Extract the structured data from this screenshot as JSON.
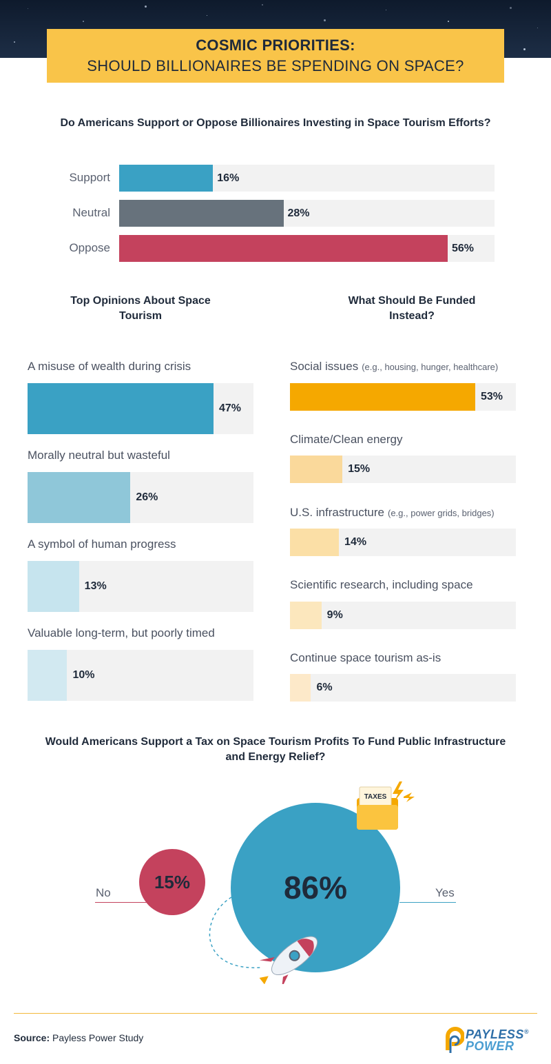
{
  "header": {
    "title_line1": "COSMIC PRIORITIES:",
    "title_line2": "SHOULD BILLIONAIRES BE SPENDING ON SPACE?"
  },
  "colors": {
    "support": "#3aa1c4",
    "neutral": "#67727c",
    "oppose": "#c4425d",
    "opinions": [
      "#3aa1c4",
      "#8fc7d9",
      "#c6e4ee",
      "#d2e9f1"
    ],
    "funded": [
      "#f5a800",
      "#fad99b",
      "#fbdfa6",
      "#fce7bd",
      "#fde9c9"
    ],
    "yes": "#3aa1c4",
    "no": "#c4425d",
    "track": "#f2f2f2"
  },
  "chart_data": [
    {
      "type": "bar",
      "title": "Do Americans Support or Oppose Billionaires Investing in Space Tourism Efforts?",
      "categories": [
        "Support",
        "Neutral",
        "Oppose"
      ],
      "values": [
        16,
        28,
        56
      ],
      "value_labels": [
        "16%",
        "28%",
        "56%"
      ],
      "unit": "%",
      "ylim": [
        0,
        100
      ]
    },
    {
      "type": "bar",
      "title": "Top Opinions About Space Tourism",
      "categories": [
        "A misuse of wealth during crisis",
        "Morally neutral but wasteful",
        "A symbol of human progress",
        "Valuable long-term, but poorly timed"
      ],
      "values": [
        47,
        26,
        13,
        10
      ],
      "value_labels": [
        "47%",
        "26%",
        "13%",
        "10%"
      ],
      "unit": "%",
      "ylim": [
        0,
        57
      ]
    },
    {
      "type": "bar",
      "title": "What Should Be Funded Instead?",
      "categories": [
        "Social issues",
        "Climate/Clean energy",
        "U.S. infrastructure",
        "Scientific research, including space",
        "Continue space tourism as-is"
      ],
      "notes": [
        "(e.g., housing, hunger, healthcare)",
        "",
        "(e.g., power grids, bridges)",
        "",
        ""
      ],
      "values": [
        53,
        15,
        14,
        9,
        6
      ],
      "value_labels": [
        "53%",
        "15%",
        "14%",
        "9%",
        "6%"
      ],
      "unit": "%",
      "ylim": [
        0,
        64
      ]
    },
    {
      "type": "bubble",
      "title": "Would Americans Support a Tax on Space Tourism Profits To Fund Public Infrastructure and Energy Relief?",
      "categories": [
        "No",
        "Yes"
      ],
      "values": [
        15,
        86
      ],
      "value_labels": [
        "15%",
        "86%"
      ],
      "unit": "%"
    }
  ],
  "tax_icon": {
    "name": "taxes-folder-icon",
    "label": "TAXES"
  },
  "footer": {
    "source_label": "Source:",
    "source_text": "Payless Power Study",
    "logo_line1": "PAYLESS",
    "logo_line2": "POWER",
    "logo_mark": "®"
  }
}
